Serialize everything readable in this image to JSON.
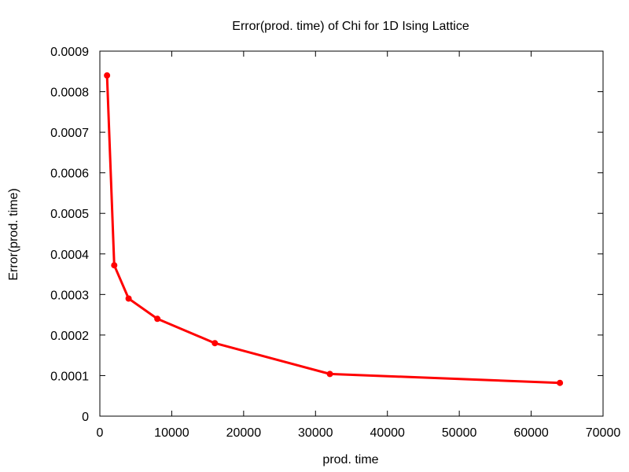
{
  "chart_data": {
    "type": "line",
    "title": "Error(prod. time) of Chi for 1D Ising Lattice",
    "xlabel": "prod. time",
    "ylabel": "Error(prod. time)",
    "xlim": [
      0,
      70000
    ],
    "ylim": [
      0,
      0.0009
    ],
    "x_ticks": [
      "0",
      "10000",
      "20000",
      "30000",
      "40000",
      "50000",
      "60000",
      "70000"
    ],
    "y_ticks": [
      "0",
      "0.0001",
      "0.0002",
      "0.0003",
      "0.0004",
      "0.0005",
      "0.0006",
      "0.0007",
      "0.0008",
      "0.0009"
    ],
    "grid": false,
    "legend": "none",
    "series": [
      {
        "color": "#ff0000",
        "x": [
          1000,
          2000,
          4000,
          8000,
          16000,
          32000,
          64000
        ],
        "y": [
          0.00084,
          0.000372,
          0.00029,
          0.00024,
          0.00018,
          0.000104,
          8.2e-05
        ]
      }
    ]
  }
}
